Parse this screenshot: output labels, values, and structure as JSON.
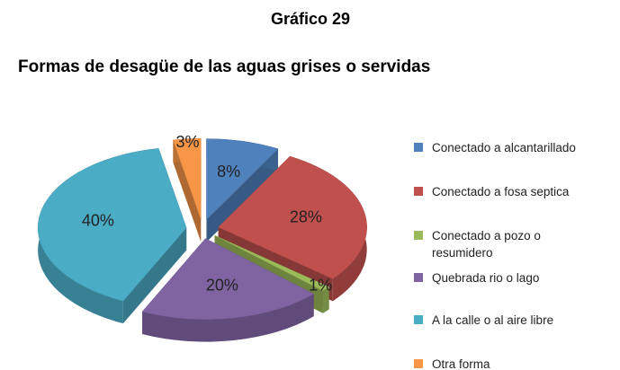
{
  "chart_data": {
    "type": "pie",
    "title": "Gráfico 29",
    "subtitle": "Formas de desagüe de las aguas grises o servidas",
    "categories": [
      "Conectado a alcantarillado",
      "Conectado a fosa septica",
      "Conectado a pozo o resumidero",
      "Quebrada rio o lago",
      "A la calle o al aire libre",
      "Otra forma"
    ],
    "values": [
      8,
      28,
      1,
      20,
      40,
      3
    ],
    "value_labels": [
      "8%",
      "28%",
      "1%",
      "20%",
      "40%",
      "3%"
    ],
    "colors": [
      "#4f81bd",
      "#c0504d",
      "#9bbb59",
      "#8064a2",
      "#4bacc6",
      "#f79646"
    ],
    "legend": "right"
  }
}
